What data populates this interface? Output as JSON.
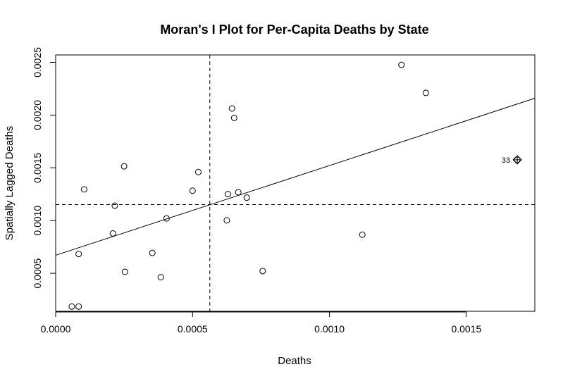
{
  "chart_data": {
    "type": "scatter",
    "title": "Moran's I Plot for Per-Capita Deaths by State",
    "xlabel": "Deaths",
    "ylabel": "Spatially Lagged Deaths",
    "xlim": [
      0,
      0.00175
    ],
    "ylim": [
      0.00014,
      0.00257
    ],
    "x_ticks": [
      0.0,
      0.0005,
      0.001,
      0.0015
    ],
    "x_tick_labels": [
      "0.0000",
      "0.0005",
      "0.0010",
      "0.0015"
    ],
    "y_ticks": [
      0.0005,
      0.001,
      0.0015,
      0.002,
      0.0025
    ],
    "y_tick_labels": [
      "0.0005",
      "0.0010",
      "0.0015",
      "0.0020",
      "0.0025"
    ],
    "grid": false,
    "legend": "none",
    "points": [
      {
        "x": 5.9e-05,
        "y": 0.000185
      },
      {
        "x": 8.4e-05,
        "y": 0.000185
      },
      {
        "x": 8.4e-05,
        "y": 0.000683
      },
      {
        "x": 0.000104,
        "y": 0.001296
      },
      {
        "x": 0.000209,
        "y": 0.000878
      },
      {
        "x": 0.000216,
        "y": 0.001141
      },
      {
        "x": 0.00025,
        "y": 0.001514
      },
      {
        "x": 0.000253,
        "y": 0.000514
      },
      {
        "x": 0.000353,
        "y": 0.000693
      },
      {
        "x": 0.000384,
        "y": 0.000463
      },
      {
        "x": 0.000405,
        "y": 0.00102
      },
      {
        "x": 0.0005,
        "y": 0.001283
      },
      {
        "x": 0.000521,
        "y": 0.00146
      },
      {
        "x": 0.000625,
        "y": 0.001002
      },
      {
        "x": 0.000629,
        "y": 0.001251
      },
      {
        "x": 0.000644,
        "y": 0.002063
      },
      {
        "x": 0.000652,
        "y": 0.001973
      },
      {
        "x": 0.000667,
        "y": 0.001268
      },
      {
        "x": 0.000698,
        "y": 0.001217
      },
      {
        "x": 0.000756,
        "y": 0.000521
      },
      {
        "x": 0.00112,
        "y": 0.000866
      },
      {
        "x": 0.001263,
        "y": 0.002476
      },
      {
        "x": 0.001352,
        "y": 0.00221
      }
    ],
    "influential_points": [
      {
        "x": 0.001686,
        "y": 0.001576,
        "label": "33"
      }
    ],
    "regression_line": {
      "intercept": 0.000671,
      "slope": 0.8504
    },
    "mean_x": 0.000563,
    "mean_y": 0.001151
  }
}
